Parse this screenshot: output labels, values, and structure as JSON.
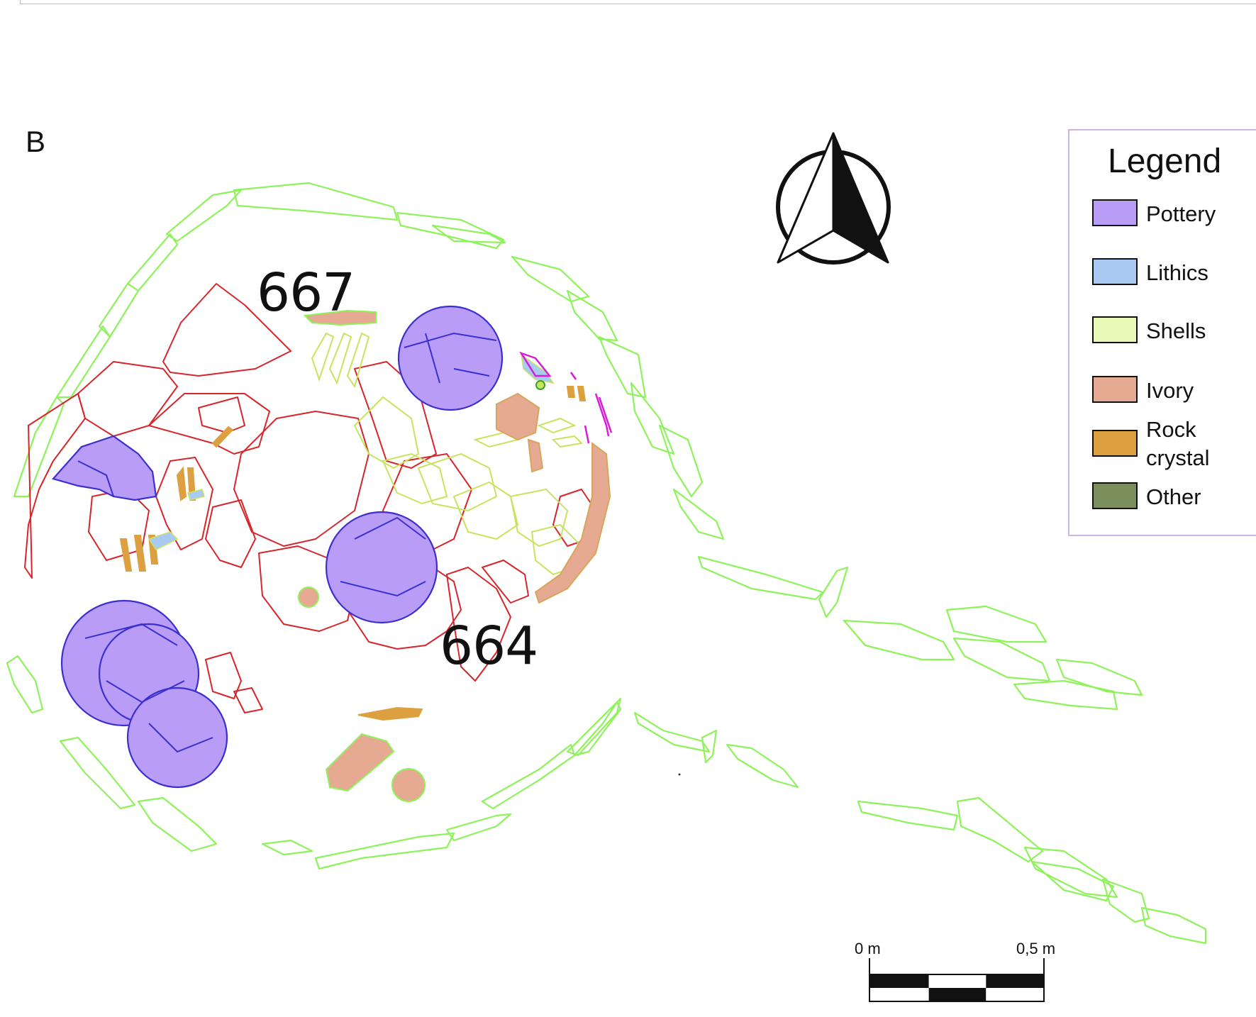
{
  "panel_letter": "B",
  "feature_labels": {
    "label_667": "667",
    "label_664": "664"
  },
  "legend": {
    "title": "Legend",
    "items": [
      {
        "label": "Pottery",
        "color": "#b89cf6"
      },
      {
        "label": "Lithics",
        "color": "#a9cbf3"
      },
      {
        "label": "Shells",
        "color": "#e9f9b8"
      },
      {
        "label": "Ivory",
        "color": "#e6a991"
      },
      {
        "label": "Rock crystal",
        "color": "#dda040"
      },
      {
        "label": "Other",
        "color": "#7a8f5c"
      }
    ]
  },
  "scale": {
    "start_label": "0 m",
    "end_label": "0,5 m"
  },
  "colors": {
    "stone_outline": "#8ef25b",
    "feature_outline": "#d7262b",
    "pottery_fill": "#b89cf6",
    "pottery_outline": "#3b2fd1",
    "shell_outline": "#c8e45f",
    "ivory_fill": "#e6a991",
    "ivory_outline": "#d8a55a",
    "rock_crystal": "#dda040",
    "magenta_find": "#d91bdc"
  },
  "icons": {
    "north_arrow": "north-arrow-icon"
  }
}
